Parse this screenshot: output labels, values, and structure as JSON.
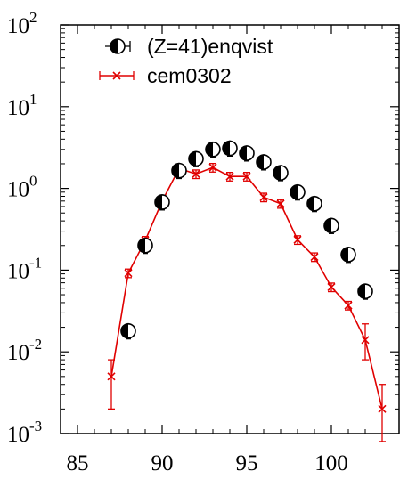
{
  "chart_data": {
    "type": "scatter",
    "title": "",
    "xlabel": "",
    "ylabel": "",
    "x_axis": {
      "range": [
        84,
        104
      ],
      "ticks": [
        85,
        90,
        95,
        100
      ],
      "tick_labels": [
        "85",
        "90",
        "95",
        "100"
      ]
    },
    "y_axis": {
      "scale": "log",
      "range": [
        0.001,
        100
      ],
      "ticks": [
        0.001,
        0.01,
        0.1,
        1,
        10,
        100
      ],
      "tick_labels": [
        {
          "base": "10",
          "exp": "-3"
        },
        {
          "base": "10",
          "exp": "-2"
        },
        {
          "base": "10",
          "exp": "-1"
        },
        {
          "base": "10",
          "exp": "0"
        },
        {
          "base": "10",
          "exp": "1"
        },
        {
          "base": "10",
          "exp": "2"
        }
      ]
    },
    "grid": false,
    "legend_position": "top-left",
    "series": [
      {
        "name": "(Z=41)enqvist",
        "style": "half-filled-circle-with-errorbars",
        "color": "#000000",
        "points": [
          {
            "x": 88,
            "y": 0.018
          },
          {
            "x": 89,
            "y": 0.2
          },
          {
            "x": 90,
            "y": 0.68
          },
          {
            "x": 91,
            "y": 1.65
          },
          {
            "x": 92,
            "y": 2.3
          },
          {
            "x": 93,
            "y": 3.0
          },
          {
            "x": 94,
            "y": 3.1
          },
          {
            "x": 95,
            "y": 2.7
          },
          {
            "x": 96,
            "y": 2.1
          },
          {
            "x": 97,
            "y": 1.55
          },
          {
            "x": 98,
            "y": 0.9
          },
          {
            "x": 99,
            "y": 0.65
          },
          {
            "x": 100,
            "y": 0.35
          },
          {
            "x": 101,
            "y": 0.155
          },
          {
            "x": 102,
            "y": 0.055
          }
        ]
      },
      {
        "name": "cem0302",
        "style": "line-with-x-markers-and-errorbars",
        "color": "#e00000",
        "points": [
          {
            "x": 87,
            "y": 0.005,
            "ylo": 0.002,
            "yhi": 0.008
          },
          {
            "x": 88,
            "y": 0.092
          },
          {
            "x": 89,
            "y": 0.23
          },
          {
            "x": 90,
            "y": 0.7
          },
          {
            "x": 91,
            "y": 1.75
          },
          {
            "x": 92,
            "y": 1.5
          },
          {
            "x": 93,
            "y": 1.8
          },
          {
            "x": 94,
            "y": 1.4
          },
          {
            "x": 95,
            "y": 1.4
          },
          {
            "x": 96,
            "y": 0.78
          },
          {
            "x": 97,
            "y": 0.65
          },
          {
            "x": 98,
            "y": 0.235
          },
          {
            "x": 99,
            "y": 0.145
          },
          {
            "x": 100,
            "y": 0.062
          },
          {
            "x": 101,
            "y": 0.037
          },
          {
            "x": 102,
            "y": 0.014,
            "ylo": 0.008,
            "yhi": 0.022
          },
          {
            "x": 103,
            "y": 0.002,
            "ylo": 0.0008,
            "yhi": 0.004
          }
        ]
      }
    ]
  }
}
